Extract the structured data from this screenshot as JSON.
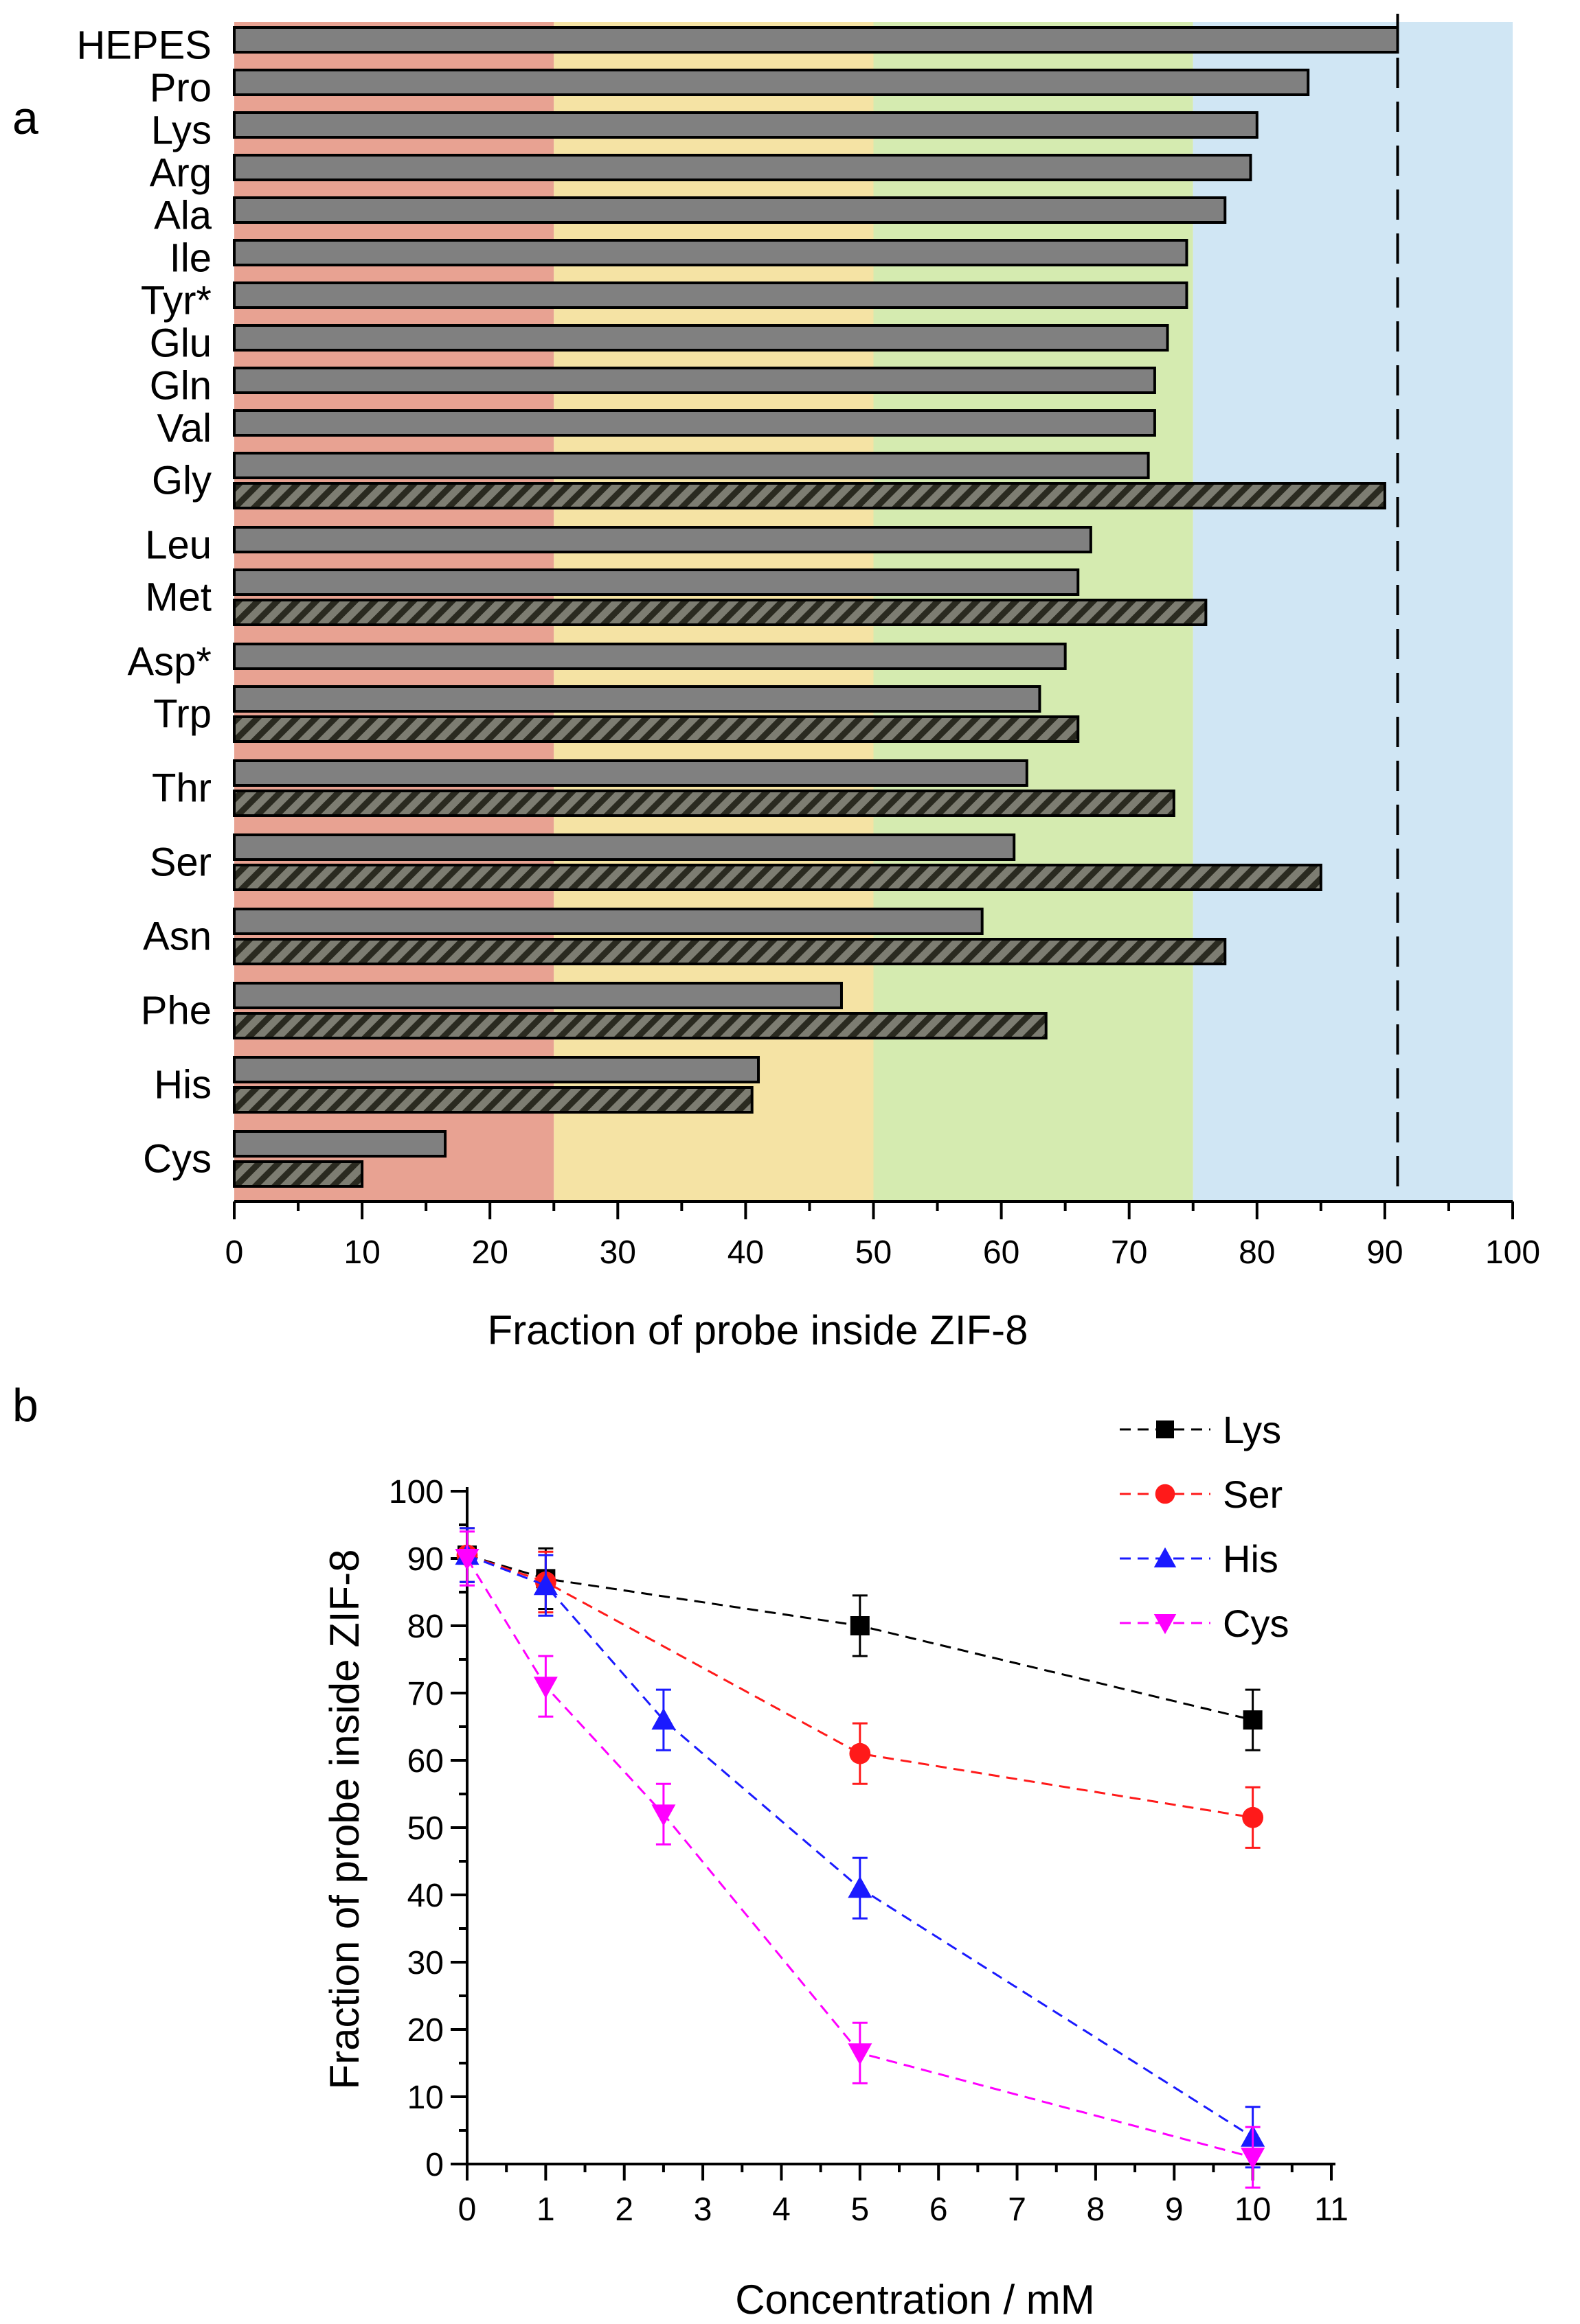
{
  "chart_data": [
    {
      "panel_label": "a",
      "type": "bar",
      "orientation": "horizontal",
      "xlabel": "Fraction of probe inside ZIF-8",
      "xlim": [
        0,
        100
      ],
      "xticks": [
        0,
        10,
        20,
        30,
        40,
        50,
        60,
        70,
        80,
        90,
        100
      ],
      "reference_line": {
        "x": 91,
        "style": "dashed",
        "series": "HEPES"
      },
      "background_bands": [
        {
          "from": 0,
          "to": 25,
          "color": "#e8a292"
        },
        {
          "from": 25,
          "to": 50,
          "color": "#f5e3a4"
        },
        {
          "from": 50,
          "to": 75,
          "color": "#d5ebb0"
        },
        {
          "from": 75,
          "to": 100,
          "color": "#d0e6f4"
        }
      ],
      "bar_colors": {
        "solid": "#808080",
        "hatched": "#7d7d72",
        "hatch_stripe": "#2a2a20"
      },
      "categories": [
        {
          "label": "HEPES",
          "solid": 91
        },
        {
          "label": "Pro",
          "solid": 84
        },
        {
          "label": "Lys",
          "solid": 80
        },
        {
          "label": "Arg",
          "solid": 79.5
        },
        {
          "label": "Ala",
          "solid": 77.5
        },
        {
          "label": "Ile",
          "solid": 74.5
        },
        {
          "label": "Tyr*",
          "solid": 74.5
        },
        {
          "label": "Glu",
          "solid": 73
        },
        {
          "label": "Gln",
          "solid": 72
        },
        {
          "label": "Val",
          "solid": 72
        },
        {
          "label": "Gly",
          "solid": 71.5,
          "hatched": 90
        },
        {
          "label": "Leu",
          "solid": 67
        },
        {
          "label": "Met",
          "solid": 66,
          "hatched": 76
        },
        {
          "label": "Asp*",
          "solid": 65
        },
        {
          "label": "Trp",
          "solid": 63,
          "hatched": 66
        },
        {
          "label": "Thr",
          "solid": 62,
          "hatched": 73.5
        },
        {
          "label": "Ser",
          "solid": 61,
          "hatched": 85
        },
        {
          "label": "Asn",
          "solid": 58.5,
          "hatched": 77.5
        },
        {
          "label": "Phe",
          "solid": 47.5,
          "hatched": 63.5
        },
        {
          "label": "His",
          "solid": 41,
          "hatched": 40.5
        },
        {
          "label": "Cys",
          "solid": 16.5,
          "hatched": 10
        }
      ]
    },
    {
      "panel_label": "b",
      "type": "scatter",
      "line_style": "dashed",
      "xlabel": "Concentration / mM",
      "ylabel": "Fraction of probe inside ZIF-8",
      "xlim": [
        0,
        11
      ],
      "ylim": [
        0,
        100
      ],
      "xticks": [
        0,
        1,
        2,
        3,
        4,
        5,
        6,
        7,
        8,
        9,
        10,
        11
      ],
      "yticks": [
        0,
        10,
        20,
        30,
        40,
        50,
        60,
        70,
        80,
        90,
        100
      ],
      "legend_position": "top-right",
      "series": [
        {
          "name": "Lys",
          "color": "#000000",
          "marker": "square",
          "points": [
            {
              "x": 0,
              "y": 90.5,
              "err": 4
            },
            {
              "x": 1,
              "y": 87,
              "err": 4.5
            },
            {
              "x": 5,
              "y": 80,
              "err": 4.5
            },
            {
              "x": 10,
              "y": 66,
              "err": 4.5
            }
          ]
        },
        {
          "name": "Ser",
          "color": "#ff1a1a",
          "marker": "circle",
          "points": [
            {
              "x": 0,
              "y": 90.5,
              "err": 4
            },
            {
              "x": 1,
              "y": 86.5,
              "err": 4.5
            },
            {
              "x": 5,
              "y": 61,
              "err": 4.5
            },
            {
              "x": 10,
              "y": 51.5,
              "err": 4.5
            }
          ]
        },
        {
          "name": "His",
          "color": "#1a1aff",
          "marker": "triangle-up",
          "points": [
            {
              "x": 0,
              "y": 90.5,
              "err": 4
            },
            {
              "x": 1,
              "y": 86,
              "err": 4.5
            },
            {
              "x": 2.5,
              "y": 66,
              "err": 4.5
            },
            {
              "x": 5,
              "y": 41,
              "err": 4.5
            },
            {
              "x": 10,
              "y": 4,
              "err": 4.5
            }
          ]
        },
        {
          "name": "Cys",
          "color": "#ff00ff",
          "marker": "triangle-down",
          "points": [
            {
              "x": 0,
              "y": 90,
              "err": 4
            },
            {
              "x": 1,
              "y": 71,
              "err": 4.5
            },
            {
              "x": 2.5,
              "y": 52,
              "err": 4.5
            },
            {
              "x": 5,
              "y": 16.5,
              "err": 4.5
            },
            {
              "x": 10,
              "y": 1,
              "err": 4.5
            }
          ]
        }
      ]
    }
  ]
}
